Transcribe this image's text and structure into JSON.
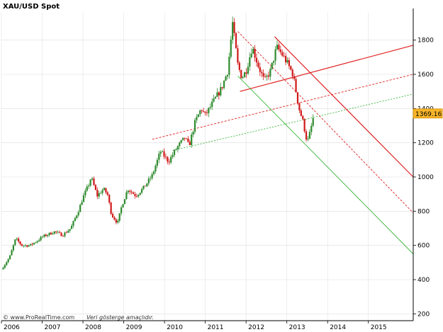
{
  "chart_data": {
    "type": "candlestick",
    "title": "XAU/USD Spot",
    "x_tick_labels": [
      "2006",
      "2007",
      "2008",
      "2009",
      "2010",
      "2011",
      "2012",
      "2013",
      "2014",
      "2015"
    ],
    "y_tick_labels": [
      "200",
      "400",
      "600",
      "800",
      "1000",
      "1200",
      "1400",
      "1600",
      "1800"
    ],
    "xlim": [
      2006.0,
      2016.1
    ],
    "ylim": [
      160,
      1960
    ],
    "grid": "vertical gridlines at years, horizontal gridlines at price ticks",
    "last_price_label": "1369.16",
    "last_price_value": 1369.16,
    "colors": {
      "up_candle": "#2e8b2e",
      "down_candle": "#d01818",
      "resistance": "#e02020",
      "support": "#39b539",
      "price_tag_bg": "#f7b52a"
    },
    "price_path": [
      [
        2006.0,
        460
      ],
      [
        2006.2,
        530
      ],
      [
        2006.35,
        640
      ],
      [
        2006.5,
        600
      ],
      [
        2006.7,
        600
      ],
      [
        2006.9,
        630
      ],
      [
        2007.0,
        650
      ],
      [
        2007.3,
        680
      ],
      [
        2007.5,
        660
      ],
      [
        2007.7,
        700
      ],
      [
        2007.9,
        810
      ],
      [
        2008.0,
        880
      ],
      [
        2008.15,
        960
      ],
      [
        2008.2,
        1000
      ],
      [
        2008.35,
        890
      ],
      [
        2008.5,
        930
      ],
      [
        2008.6,
        900
      ],
      [
        2008.7,
        780
      ],
      [
        2008.85,
        730
      ],
      [
        2008.95,
        830
      ],
      [
        2009.1,
        930
      ],
      [
        2009.3,
        890
      ],
      [
        2009.5,
        940
      ],
      [
        2009.7,
        1010
      ],
      [
        2009.9,
        1150
      ],
      [
        2010.0,
        1120
      ],
      [
        2010.1,
        1090
      ],
      [
        2010.3,
        1170
      ],
      [
        2010.5,
        1230
      ],
      [
        2010.6,
        1180
      ],
      [
        2010.75,
        1320
      ],
      [
        2010.9,
        1400
      ],
      [
        2011.0,
        1360
      ],
      [
        2011.2,
        1440
      ],
      [
        2011.4,
        1520
      ],
      [
        2011.55,
        1620
      ],
      [
        2011.67,
        1900
      ],
      [
        2011.8,
        1650
      ],
      [
        2011.9,
        1580
      ],
      [
        2012.0,
        1620
      ],
      [
        2012.15,
        1760
      ],
      [
        2012.3,
        1650
      ],
      [
        2012.45,
        1560
      ],
      [
        2012.6,
        1620
      ],
      [
        2012.75,
        1760
      ],
      [
        2012.9,
        1710
      ],
      [
        2013.0,
        1670
      ],
      [
        2013.15,
        1600
      ],
      [
        2013.3,
        1400
      ],
      [
        2013.4,
        1320
      ],
      [
        2013.5,
        1200
      ],
      [
        2013.57,
        1260
      ],
      [
        2013.67,
        1369
      ]
    ],
    "trend_lines": [
      {
        "style": "resistance-solid",
        "points": [
          [
            2011.85,
            1500
          ],
          [
            2016.1,
            1770
          ]
        ]
      },
      {
        "style": "resistance-dashed",
        "points": [
          [
            2009.7,
            1220
          ],
          [
            2016.1,
            1600
          ]
        ]
      },
      {
        "style": "support-dashed",
        "points": [
          [
            2010.2,
            1155
          ],
          [
            2016.1,
            1485
          ]
        ]
      },
      {
        "style": "resistance-solid",
        "points": [
          [
            2012.7,
            1820
          ],
          [
            2016.1,
            1000
          ]
        ]
      },
      {
        "style": "resistance-dashed",
        "points": [
          [
            2011.8,
            1850
          ],
          [
            2016.1,
            790
          ]
        ]
      },
      {
        "style": "support-solid",
        "points": [
          [
            2011.8,
            1590
          ],
          [
            2016.1,
            550
          ]
        ]
      }
    ],
    "footer_brand": "© www.ProRealTime.com",
    "footer_note": "Veri gösterge amaçlıdır."
  }
}
